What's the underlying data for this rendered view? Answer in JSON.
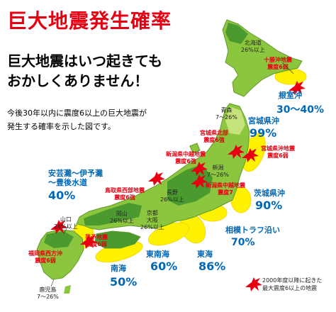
{
  "title": "巨大地震発生確率",
  "headline": [
    "巨大地震はいつ起きても",
    "おかしくありません！"
  ],
  "description": [
    "今後30年以内に震度6以上の巨大地震が",
    "発生する確率を示した図です。"
  ],
  "region_labels": {
    "hokkaido": [
      "北海道",
      "26%以上"
    ],
    "aomori": [
      "青森",
      "7〜26%"
    ],
    "niigata": [
      "新潟",
      "7〜26%"
    ],
    "nagano": [
      "長野",
      "26%以上"
    ],
    "kyoto_osaka": [
      "京都",
      "大阪",
      "26%以上"
    ],
    "okayama": [
      "岡山",
      "26%以上"
    ],
    "yamaguchi": [
      "山口",
      "26%以上"
    ],
    "kagoshima": [
      "鹿児島",
      "7〜26%"
    ]
  },
  "quake_labels": {
    "tokachi": [
      "十勝沖地震",
      "震度6弱"
    ],
    "miyagi_north": [
      "宮城県北部",
      "震度6強"
    ],
    "miyagi_oki": [
      "宮城県沖地震",
      "震度6弱"
    ],
    "chuetsu": [
      "新潟県中越地震",
      "震度6強"
    ],
    "chuetsu_oki": [
      "新潟県中越地震",
      "震度7"
    ],
    "tottori": [
      "鳥取県西部地震",
      "震度6強"
    ],
    "geiyo": [
      "芸予地震",
      "震度6弱"
    ],
    "fukuoka": [
      "福岡県西方沖",
      "震度6弱"
    ]
  },
  "probabilities": {
    "nemuro": {
      "name": "根室沖",
      "value": "30〜40%"
    },
    "miyagi": {
      "name": "宮城県沖",
      "value": "99%"
    },
    "ibaraki": {
      "name": "茨城県沖",
      "value": "90%"
    },
    "sagami": {
      "name": "相模トラフ沿い",
      "value": "70%"
    },
    "tokai": {
      "name": "東海",
      "value": "86%"
    },
    "tonankai": {
      "name": "東南海",
      "value": "60%"
    },
    "nankai": {
      "name": "南海",
      "value": "50%"
    },
    "aki": {
      "name": "安芸灘〜伊予灘\n〜豊後水道",
      "value": "40%"
    }
  },
  "legend": [
    "2000年度以降に起きた",
    "最大震度6以上の地震"
  ],
  "colors": {
    "title": "#e60012",
    "land_high": "#4a9a2f",
    "land_mid": "#8cc63f",
    "land_low": "#c6e27a",
    "zone": "#fff200",
    "zone_edge": "#f5d800",
    "quake": "#e60012",
    "prob_text": "#0068b7"
  }
}
